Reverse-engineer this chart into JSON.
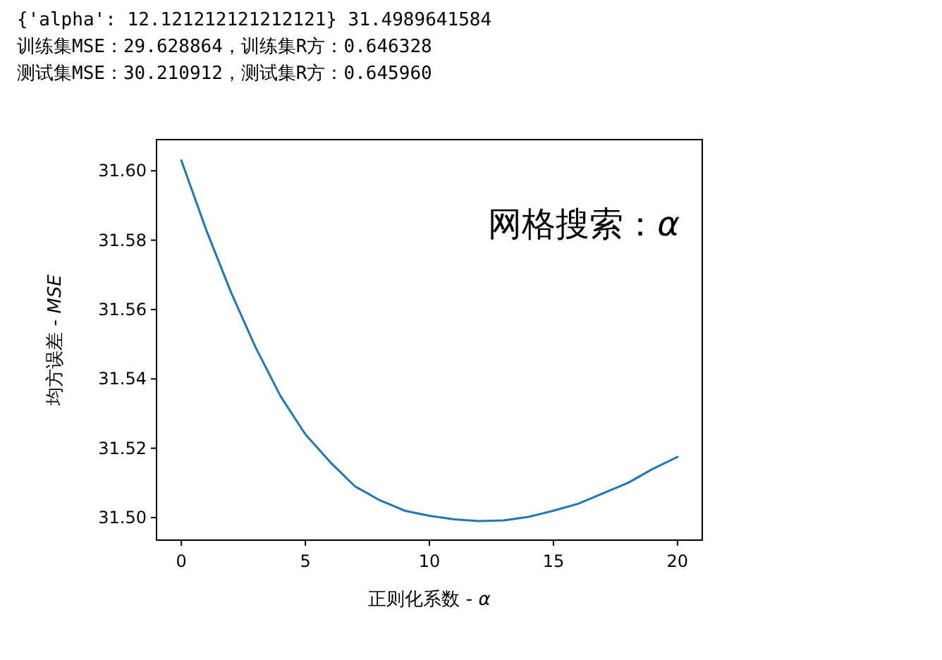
{
  "chart_data": {
    "type": "line",
    "title": "网格搜索：*α*",
    "xlabel": "正则化系数 - *α*",
    "ylabel": "均方误差 - *MSE*",
    "annotations": [
      "{'alpha': 12.121212121212121} 31.4989641584",
      "训练集MSE：29.628864，训练集R方：0.646328",
      "测试集MSE：30.210912，测试集R方：0.645960"
    ],
    "x": [
      0,
      1,
      2,
      3,
      4,
      5,
      6,
      7,
      8,
      9,
      10,
      11,
      12,
      13,
      14,
      15,
      16,
      17,
      18,
      19,
      20
    ],
    "series": [
      {
        "color": "#1f77b4",
        "values": [
          31.603,
          31.583,
          31.565,
          31.549,
          31.535,
          31.524,
          31.516,
          31.509,
          31.505,
          31.502,
          31.5005,
          31.4995,
          31.499,
          31.4992,
          31.5002,
          31.502,
          31.504,
          31.507,
          31.51,
          31.514,
          31.5175
        ]
      }
    ],
    "xlim": [
      -1,
      21
    ],
    "ylim": [
      31.4935,
      31.609
    ],
    "xticks": [
      0,
      5,
      10,
      15,
      20
    ],
    "yticks": [
      {
        "value": 31.5,
        "label": "31.50"
      },
      {
        "value": 31.52,
        "label": "31.52"
      },
      {
        "value": 31.54,
        "label": "31.54"
      },
      {
        "value": 31.56,
        "label": "31.56"
      },
      {
        "value": 31.58,
        "label": "31.58"
      },
      {
        "value": 31.6,
        "label": "31.60"
      }
    ],
    "grid": false
  }
}
